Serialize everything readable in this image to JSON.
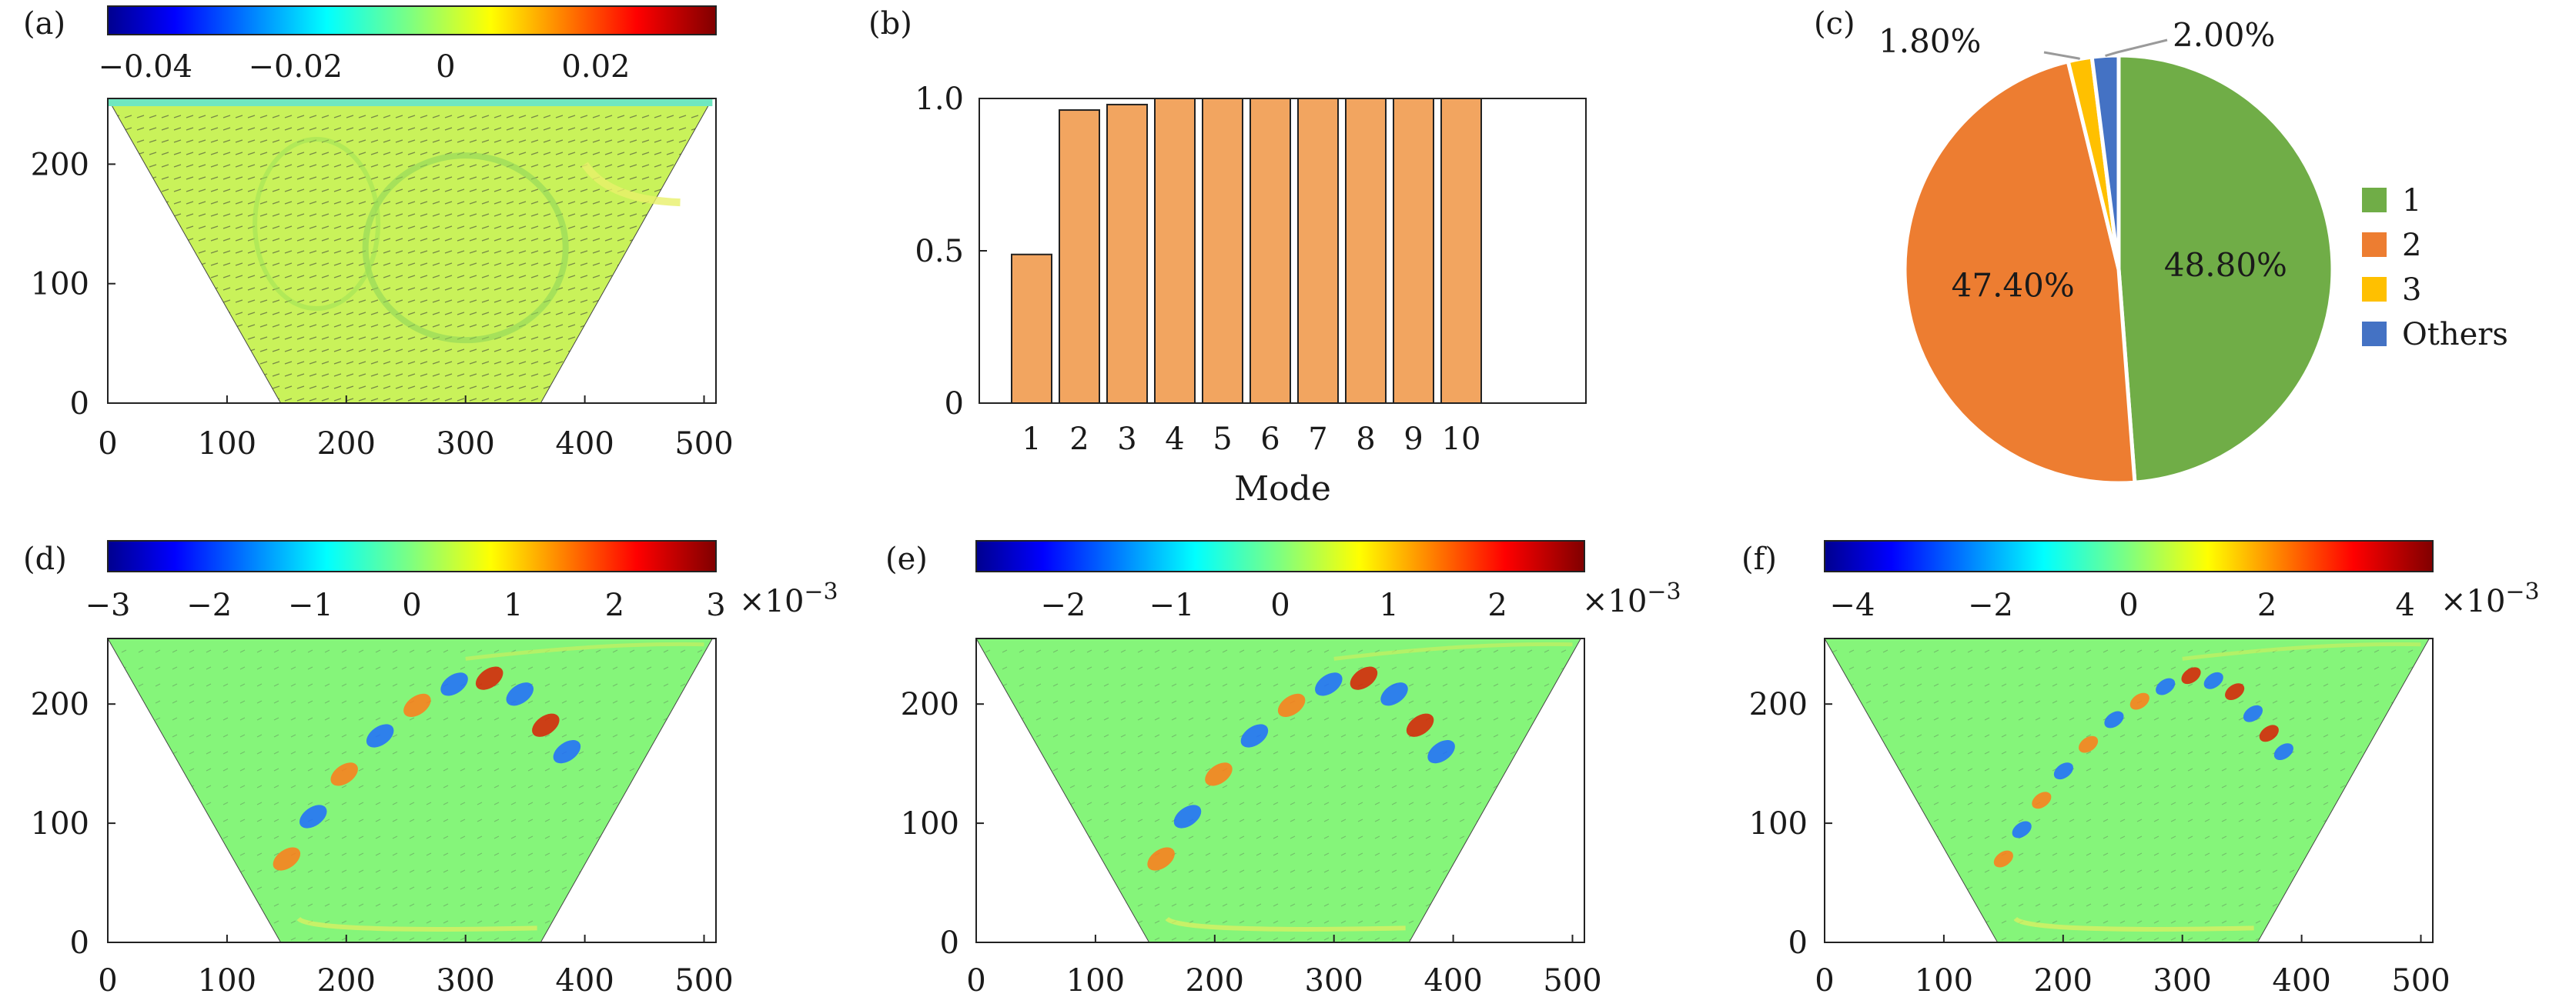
{
  "chart_data": [
    {
      "panel": "(a)",
      "type": "heatmap",
      "colorbar": {
        "ticks": [
          "−0.04",
          "−0.02",
          "0",
          "0.02"
        ],
        "range": [
          -0.045,
          0.036
        ],
        "colormap": "jet"
      },
      "xticks": [
        "0",
        "100",
        "200",
        "300",
        "400",
        "500"
      ],
      "yticks": [
        "0",
        "100",
        "200"
      ],
      "xlim": [
        0,
        510
      ],
      "ylim": [
        0,
        255
      ],
      "domain_shape": "trapezoid",
      "field": "near-uniform mean field with velocity vectors"
    },
    {
      "panel": "(b)",
      "type": "bar",
      "xlabel": "Mode",
      "categories": [
        "1",
        "2",
        "3",
        "4",
        "5",
        "6",
        "7",
        "8",
        "9",
        "10"
      ],
      "values": [
        0.488,
        0.962,
        0.98,
        1.0,
        1.0,
        1.0,
        1.0,
        1.0,
        1.0,
        1.0
      ],
      "yticks": [
        "0",
        "0.5",
        "1.0"
      ],
      "ylim": [
        0,
        1.0
      ],
      "bar_color": "#F2A560"
    },
    {
      "panel": "(c)",
      "type": "pie",
      "slices": [
        {
          "label": "1",
          "value": 48.8,
          "text": "48.80%",
          "color": "#70AD47"
        },
        {
          "label": "2",
          "value": 47.4,
          "text": "47.40%",
          "color": "#ED7D31"
        },
        {
          "label": "3",
          "value": 1.8,
          "text": "1.80%",
          "color": "#FFC000"
        },
        {
          "label": "Others",
          "value": 2.0,
          "text": "2.00%",
          "color": "#4472C4"
        }
      ],
      "legend_position": "right"
    },
    {
      "panel": "(d)",
      "type": "heatmap",
      "colorbar": {
        "ticks": [
          "−3",
          "−2",
          "−1",
          "0",
          "1",
          "2",
          "3"
        ],
        "range": [
          -3,
          3
        ],
        "multiplier": "×10",
        "multiplier_exp": "−3",
        "colormap": "jet"
      },
      "xticks": [
        "0",
        "100",
        "200",
        "300",
        "400",
        "500"
      ],
      "yticks": [
        "0",
        "100",
        "200"
      ],
      "xlim": [
        0,
        510
      ],
      "ylim": [
        0,
        255
      ],
      "field": "POD mode 1"
    },
    {
      "panel": "(e)",
      "type": "heatmap",
      "colorbar": {
        "ticks": [
          "−2",
          "−1",
          "0",
          "1",
          "2"
        ],
        "range": [
          -2.8,
          2.8
        ],
        "multiplier": "×10",
        "multiplier_exp": "−3",
        "colormap": "jet"
      },
      "xticks": [
        "0",
        "100",
        "200",
        "300",
        "400",
        "500"
      ],
      "yticks": [
        "0",
        "100",
        "200"
      ],
      "xlim": [
        0,
        510
      ],
      "ylim": [
        0,
        255
      ],
      "field": "POD mode 2"
    },
    {
      "panel": "(f)",
      "type": "heatmap",
      "colorbar": {
        "ticks": [
          "−4",
          "−2",
          "0",
          "2",
          "4"
        ],
        "range": [
          -4.4,
          4.4
        ],
        "multiplier": "×10",
        "multiplier_exp": "−3",
        "colormap": "jet"
      },
      "xticks": [
        "0",
        "100",
        "200",
        "300",
        "400",
        "500"
      ],
      "yticks": [
        "0",
        "100",
        "200"
      ],
      "xlim": [
        0,
        510
      ],
      "ylim": [
        0,
        255
      ],
      "field": "POD mode 3"
    }
  ]
}
